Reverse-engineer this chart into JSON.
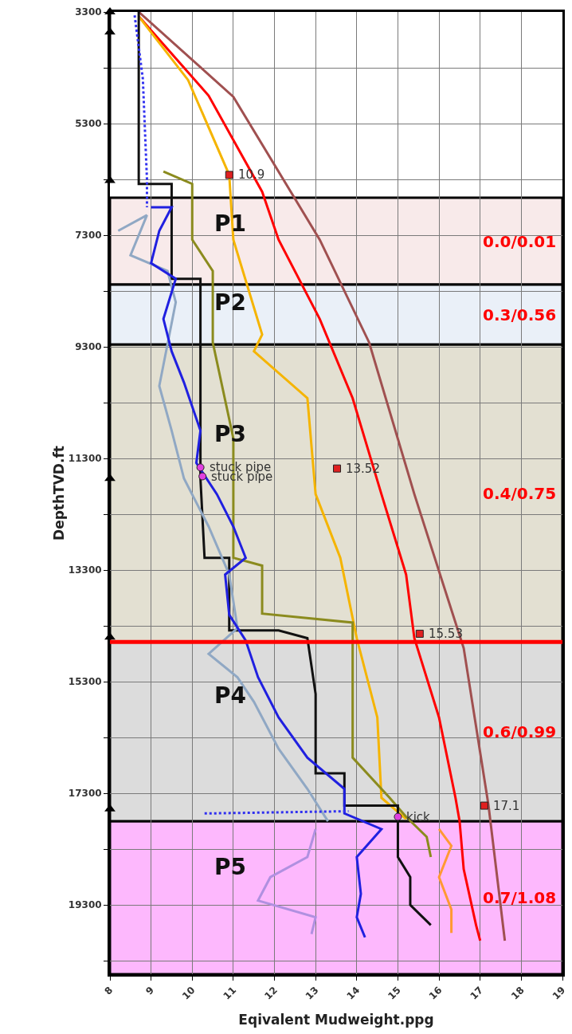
{
  "chart_data": {
    "type": "line",
    "xlabel": "Eqivalent Mudweight.ppg",
    "ylabel": "DepthTVD.ft",
    "xlim": [
      8,
      19
    ],
    "xticks": [
      8,
      9,
      10,
      11,
      12,
      13,
      14,
      15,
      16,
      17,
      18,
      19
    ],
    "ylim": [
      20540,
      3300
    ],
    "yticks": [
      3300,
      {
        "value": 4300,
        "label": null
      },
      5300,
      {
        "value": 6300,
        "label": null
      },
      7300,
      {
        "value": 8300,
        "label": null
      },
      9300,
      {
        "value": 10300,
        "label": null
      },
      11300,
      {
        "value": 12300,
        "label": null
      },
      13300,
      {
        "value": 14300,
        "label": null
      },
      15300,
      {
        "value": 16300,
        "label": null
      },
      17300,
      {
        "value": 18300,
        "label": null
      },
      19300,
      {
        "value": 20300,
        "label": null
      }
    ],
    "grid": true,
    "bands": [
      {
        "axis": "y",
        "from": 6628,
        "to": 8186,
        "label": "P1",
        "color": "#f8eaea"
      },
      {
        "axis": "y",
        "from": 8186,
        "to": 9258,
        "label": "P2",
        "color": "#eaf0f8"
      },
      {
        "axis": "y",
        "from": 9258,
        "to": 14586,
        "label": "P3",
        "color": "#e3e0d2"
      },
      {
        "axis": "y",
        "from": 14586,
        "to": 17800,
        "label": "P4",
        "color": "#dcdcdc"
      },
      {
        "axis": "y",
        "from": 17800,
        "to": 20540,
        "label": "P5",
        "color": "#fdb8fd"
      }
    ],
    "ref_lines": [
      {
        "axis": "y",
        "value": 14586,
        "color": "#ff0000"
      }
    ],
    "series": [
      {
        "color": "#a05050",
        "x": [
          8.7,
          11.0,
          13.1,
          14.3,
          15.4,
          16.6,
          17.2,
          17.6
        ],
        "values": [
          3300,
          4820,
          7380,
          9220,
          11940,
          14700,
          17500,
          19940
        ]
      },
      {
        "color": "#ff0000",
        "x": [
          8.7,
          10.4,
          11.7,
          12.1,
          13.1,
          13.9,
          14.6,
          15.2,
          15.4,
          16.0,
          16.4,
          16.5,
          16.6,
          16.9,
          17.0
        ],
        "values": [
          3380,
          4800,
          6520,
          7380,
          8800,
          10220,
          11940,
          13380,
          14520,
          15940,
          17380,
          17800,
          18660,
          19660,
          19940
        ]
      },
      {
        "color": "#f5b400",
        "x": [
          8.7,
          9.9,
          10.9,
          11.0,
          11.7,
          11.5,
          12.8,
          13.0,
          13.6,
          14.0,
          14.5,
          14.6,
          15.2
        ],
        "values": [
          3380,
          4520,
          6220,
          7380,
          9080,
          9380,
          10220,
          11940,
          13080,
          14520,
          15940,
          17380,
          17760
        ]
      },
      {
        "color": "#ff9933",
        "x": [
          16.0,
          16.3,
          16.0,
          16.3,
          16.3
        ],
        "values": [
          17940,
          18240,
          18800,
          19380,
          19800
        ]
      },
      {
        "color": "#8b8b1e",
        "x": [
          9.3,
          10.0,
          10.0,
          10.5,
          10.5,
          11.0,
          11.0,
          11.7,
          11.7,
          13.9,
          13.9,
          13.9,
          14.8,
          15.2,
          15.7,
          15.8
        ],
        "values": [
          6160,
          6380,
          7380,
          7940,
          9220,
          10940,
          13080,
          13220,
          14080,
          14240,
          15220,
          16660,
          17380,
          17720,
          18080,
          18440
        ]
      },
      {
        "color": "#111111",
        "x": [
          8.7,
          8.7,
          9.5,
          9.5,
          10.2,
          10.2,
          10.3,
          10.9,
          10.9,
          12.1,
          12.8,
          13.0,
          13.0,
          13.7,
          13.7,
          15.0,
          15.0,
          15.3,
          15.3,
          15.8
        ],
        "values": [
          3300,
          6380,
          6380,
          8080,
          8080,
          11660,
          13080,
          13080,
          14380,
          14380,
          14520,
          15520,
          16940,
          16940,
          17520,
          17520,
          18440,
          18800,
          19300,
          19660
        ]
      },
      {
        "color": "#90a8c4",
        "x": [
          8.2,
          8.9,
          8.5,
          9.4,
          9.6,
          9.2,
          9.5,
          9.8,
          10.4,
          10.9,
          11.1,
          10.4,
          11.1,
          11.5,
          12.1,
          12.8,
          13.3
        ],
        "values": [
          7220,
          6940,
          7660,
          7940,
          8500,
          10000,
          10800,
          11660,
          12520,
          13380,
          14340,
          14800,
          15220,
          15660,
          16500,
          17220,
          17800
        ]
      },
      {
        "color": "#b090e0",
        "x": [
          13.0,
          12.8,
          11.9,
          11.6,
          13.0,
          12.9
        ],
        "values": [
          17940,
          18440,
          18800,
          19220,
          19520,
          19820
        ]
      },
      {
        "color": "#2020e0",
        "x": [
          9.0,
          9.5,
          9.2,
          9.0,
          9.6,
          9.3,
          9.5,
          9.8,
          10.2,
          10.1,
          10.6,
          11.0,
          11.3,
          10.8,
          10.9,
          11.3,
          11.6,
          12.1,
          12.8,
          13.7,
          13.7,
          14.6,
          14.0,
          14.1,
          14.0,
          14.2
        ],
        "values": [
          6800,
          6800,
          7220,
          7800,
          8080,
          8800,
          9380,
          9940,
          10800,
          11380,
          11940,
          12520,
          13080,
          13380,
          14100,
          14560,
          15220,
          15940,
          16660,
          17220,
          17660,
          17940,
          18440,
          19100,
          19520,
          19880
        ]
      },
      {
        "color": "#3030f0",
        "line_style": "dotted",
        "x": [
          8.6,
          8.8,
          8.9,
          8.9,
          null,
          10.3,
          13.8
        ],
        "values": [
          3360,
          4500,
          6300,
          6800,
          null,
          17660,
          17620
        ]
      },
      {
        "color": "#000000",
        "marker": "triangle",
        "x": [
          8,
          8,
          8,
          null,
          8,
          null,
          8,
          null,
          8
        ],
        "values": [
          3300,
          3660,
          6320,
          null,
          11660,
          null,
          14500,
          null,
          17580
        ]
      },
      {
        "type": "scatter",
        "marker": "square",
        "color": "#e02020",
        "x": [
          10.9,
          13.52,
          15.53,
          17.1
        ],
        "values": [
          6220,
          11480,
          14440,
          17520
        ]
      },
      {
        "type": "scatter",
        "marker": "circle",
        "color": "#e040e0",
        "x": [
          10.2,
          10.25,
          15.0
        ],
        "values": [
          11460,
          11620,
          17720
        ]
      }
    ],
    "annotations": [
      "0.0/0.01",
      "0.3/0.56",
      "0.4/0.75",
      "0.6/0.99",
      "0.7/1.08",
      {
        "text": "10.9",
        "x": 10.9,
        "y": 6220
      },
      {
        "text": "13.52",
        "x": 13.52,
        "y": 11480
      },
      {
        "text": "15.53",
        "x": 15.53,
        "y": 14440
      },
      {
        "text": "17.1",
        "x": 17.1,
        "y": 17520
      },
      {
        "text": "stuck pipe",
        "x": 10.2,
        "y": 11460
      },
      {
        "text": "stuck pipe",
        "x": 10.25,
        "y": 11620
      },
      {
        "text": "kick",
        "x": 15.0,
        "y": 17720
      }
    ]
  }
}
